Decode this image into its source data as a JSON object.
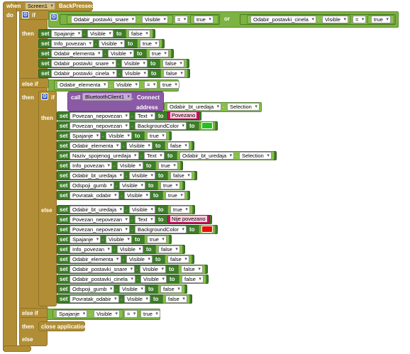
{
  "event": {
    "when": "when",
    "component": "Screen1",
    "handler": "BackPressed",
    "do": "do"
  },
  "kw": {
    "if": "if",
    "then": "then",
    "else_if": "else if",
    "else": "else",
    "set": "set",
    "to": "to",
    "or": "or",
    "eq": "=",
    "dot": ".",
    "call": "call",
    "address": "address",
    "close_application": "close application"
  },
  "cond1": {
    "left": {
      "comp": "Odabir_postavki_snare",
      "prop": "Visible",
      "val": "true"
    },
    "right": {
      "comp": "Odabir_postavki_cinela",
      "prop": "Visible",
      "val": "true"
    }
  },
  "then1": [
    {
      "comp": "Spajanje",
      "prop": "Visible",
      "val": "false"
    },
    {
      "comp": "Info_povezan",
      "prop": "Visible",
      "val": "true"
    },
    {
      "comp": "Odabir_elementa",
      "prop": "Visible",
      "val": "true"
    },
    {
      "comp": "Odabir_postavki_snare",
      "prop": "Visible",
      "val": "false"
    },
    {
      "comp": "Odabir_postavki_cinela",
      "prop": "Visible",
      "val": "false"
    }
  ],
  "cond2": {
    "comp": "Odabir_elementa",
    "prop": "Visible",
    "val": "true"
  },
  "call": {
    "comp": "BluetoothClient1",
    "method": "Connect",
    "addr_comp": "Odabir_bt_uredaja",
    "addr_prop": "Selection"
  },
  "inner_then": [
    {
      "comp": "Povezan_nepovezan",
      "prop": "Text",
      "type": "string",
      "val": "Povezano"
    },
    {
      "comp": "Povezan_nepovezan",
      "prop": "BackgroundColor",
      "type": "color",
      "color": "#22c11f"
    },
    {
      "comp": "Spajanje",
      "prop": "Visible",
      "val": "true"
    },
    {
      "comp": "Odabir_elementa",
      "prop": "Visible",
      "val": "false"
    },
    {
      "comp": "Naziv_spojenog_uredaja",
      "prop": "Text",
      "type": "getter",
      "gcomp": "Odabir_bt_uredaja",
      "gprop": "Selection"
    },
    {
      "comp": "Info_povezan",
      "prop": "Visible",
      "val": "true"
    },
    {
      "comp": "Odabir_bt_uredaja",
      "prop": "Visible",
      "val": "false"
    },
    {
      "comp": "Odspoji_gumb",
      "prop": "Visible",
      "val": "true"
    },
    {
      "comp": "Povratak_odabir",
      "prop": "Visible",
      "val": "true"
    }
  ],
  "inner_else": [
    {
      "comp": "Odabir_bt_uredaja",
      "prop": "Visible",
      "val": "true"
    },
    {
      "comp": "Povezan_nepovezan",
      "prop": "Text",
      "type": "string",
      "val": "Nije povezano"
    },
    {
      "comp": "Povezan_nepovezan",
      "prop": "BackgroundColor",
      "type": "color",
      "color": "#e4120e"
    },
    {
      "comp": "Spajanje",
      "prop": "Visible",
      "val": "true"
    },
    {
      "comp": "Info_povezan",
      "prop": "Visible",
      "val": "false"
    },
    {
      "comp": "Odabir_elementa",
      "prop": "Visible",
      "val": "false"
    },
    {
      "comp": "Odabir_postavki_snare",
      "prop": "Visible",
      "val": "false"
    },
    {
      "comp": "Odabir_postavki_cinela",
      "prop": "Visible",
      "val": "false"
    },
    {
      "comp": "Odspoji_gumb",
      "prop": "Visible",
      "val": "false"
    },
    {
      "comp": "Povratak_odabir",
      "prop": "Visible",
      "val": "false"
    }
  ],
  "cond3": {
    "comp": "Spajanje",
    "prop": "Visible",
    "val": "true"
  }
}
